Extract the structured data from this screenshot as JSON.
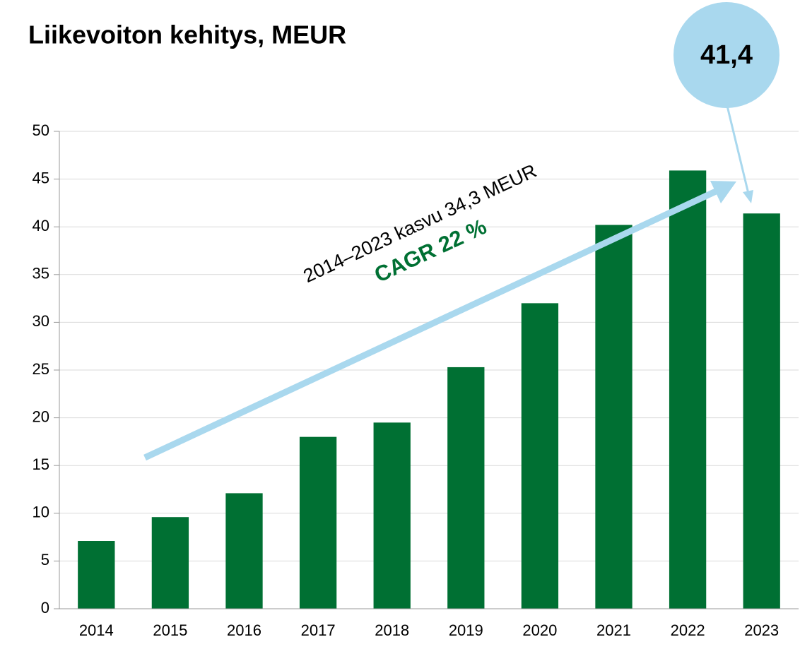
{
  "chart_data": {
    "type": "bar",
    "title": "Liikevoiton kehitys, MEUR",
    "categories": [
      "2014",
      "2015",
      "2016",
      "2017",
      "2018",
      "2019",
      "2020",
      "2021",
      "2022",
      "2023"
    ],
    "values": [
      7.1,
      9.6,
      12.1,
      18.0,
      19.5,
      25.3,
      32.0,
      40.2,
      45.9,
      41.4
    ],
    "color": "#007033",
    "ylim": [
      0,
      50
    ],
    "yticks": [
      0,
      5,
      10,
      15,
      20,
      25,
      30,
      35,
      40,
      45,
      50
    ],
    "grid": true,
    "annotations": [
      "2014–2023 kasvu 34,3 MEUR",
      "CAGR 22 %",
      "41,4"
    ]
  }
}
